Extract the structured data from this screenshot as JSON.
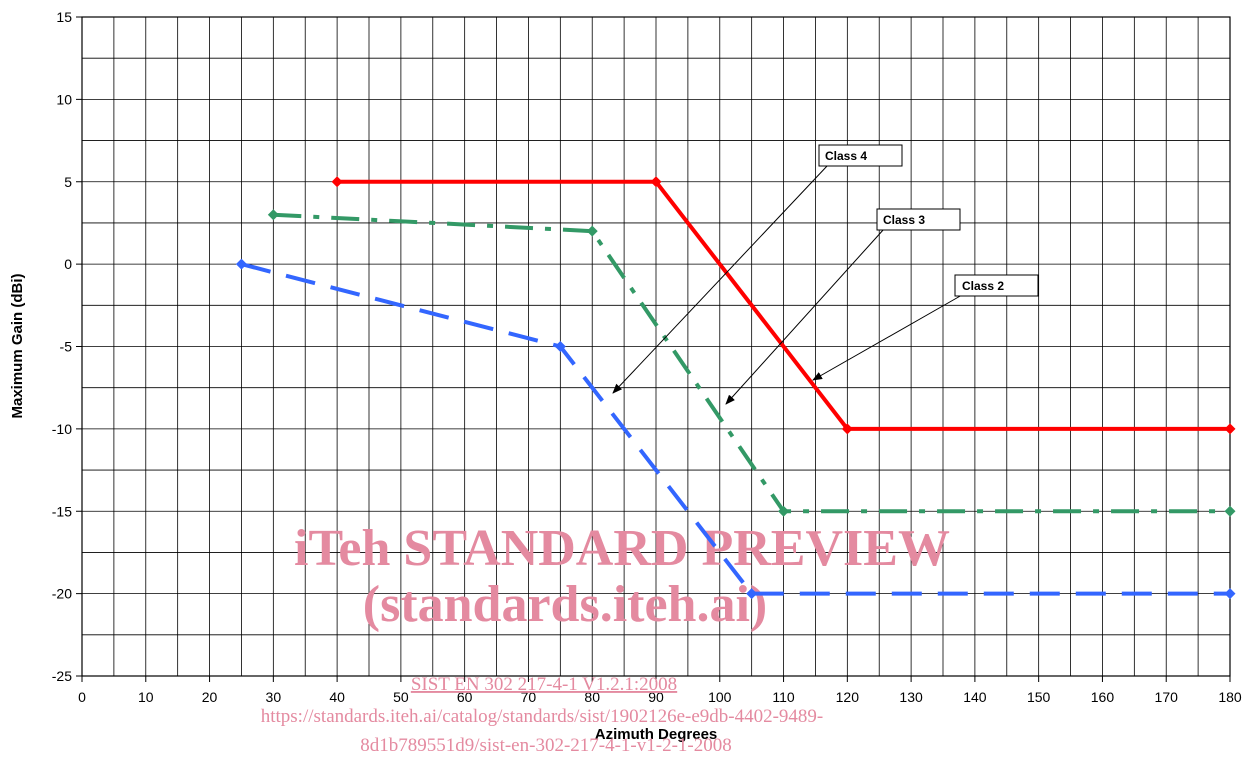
{
  "chart_data": {
    "type": "line",
    "xlabel": "Azimuth Degrees",
    "ylabel": "Maximum Gain (dBi)",
    "xlim": [
      0,
      180
    ],
    "ylim": [
      -25,
      15
    ],
    "x_ticks": [
      0,
      10,
      20,
      30,
      40,
      50,
      60,
      70,
      80,
      90,
      100,
      110,
      120,
      130,
      140,
      150,
      160,
      170,
      180
    ],
    "y_ticks": [
      15,
      10,
      5,
      0,
      -5,
      -10,
      -15,
      -20,
      -25
    ],
    "grid": true,
    "series": [
      {
        "name": "Class 2",
        "color": "#ff0000",
        "dash": "solid",
        "points": [
          [
            40,
            5
          ],
          [
            90,
            5
          ],
          [
            120,
            -10
          ],
          [
            180,
            -10
          ]
        ]
      },
      {
        "name": "Class 3",
        "color": "#339966",
        "dash": "dash-dot",
        "points": [
          [
            30,
            3
          ],
          [
            80,
            2
          ],
          [
            110,
            -15
          ],
          [
            180,
            -15
          ]
        ]
      },
      {
        "name": "Class 4",
        "color": "#3366ff",
        "dash": "dashed",
        "points": [
          [
            25,
            0
          ],
          [
            75,
            -5
          ],
          [
            105,
            -20
          ],
          [
            180,
            -20
          ]
        ]
      }
    ],
    "annotations": [
      {
        "text": "Class 4",
        "target": [
          82,
          -7.8
        ]
      },
      {
        "text": "Class 3",
        "target": [
          102,
          -8.5
        ]
      },
      {
        "text": "Class 2",
        "target": [
          114.5,
          -7
        ]
      }
    ]
  },
  "watermark": {
    "title": "iTeh STANDARD PREVIEW",
    "subtitle": "(standards.iteh.ai)",
    "link1": "SIST EN 302 217-4-1 V1.2.1:2008",
    "link2": "https://standards.iteh.ai/catalog/standards/sist/1902126e-e9db-4402-9489-",
    "link3": "8d1b789551d9/sist-en-302-217-4-1-v1-2-1-2008"
  }
}
